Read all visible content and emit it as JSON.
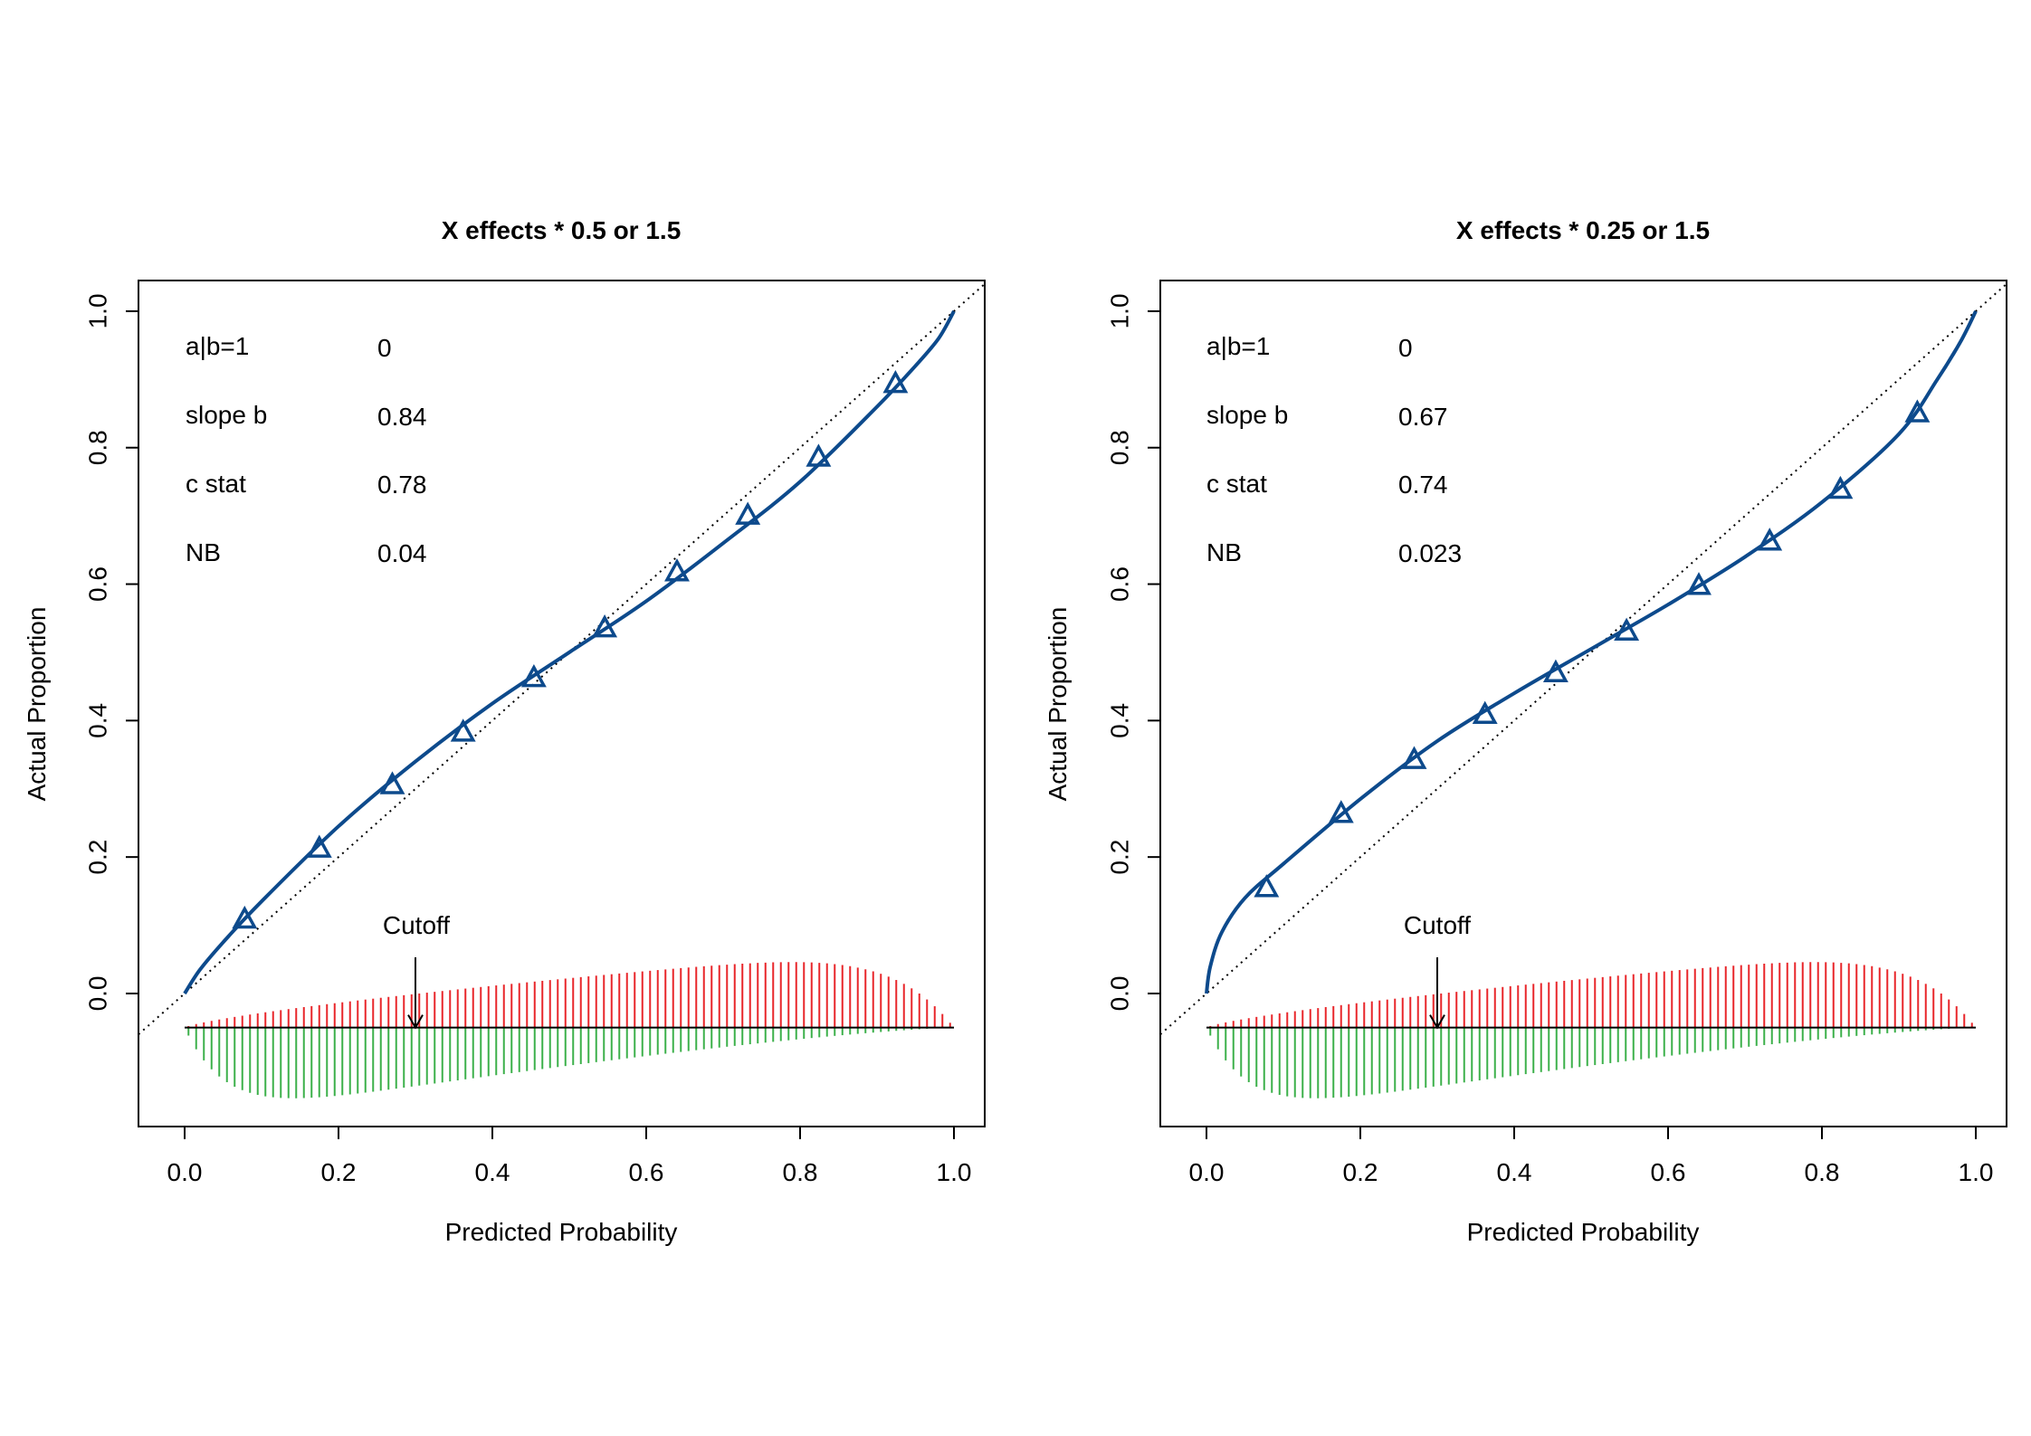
{
  "colors": {
    "calibration": "#0D4A8C",
    "positive_spikes": "#E8262A",
    "negative_spikes": "#3CB04A",
    "diagonal": "#000000",
    "frame": "#000000"
  },
  "chart_data": [
    {
      "type": "line",
      "title": "X effects * 0.5 or 1.5",
      "xlabel": "Predicted Probability",
      "ylabel": "Actual Proportion",
      "xlim": [
        -0.06,
        1.04
      ],
      "ylim": [
        -0.195,
        1.045
      ],
      "x_ticks": [
        "0.0",
        "0.2",
        "0.4",
        "0.6",
        "0.8",
        "1.0"
      ],
      "y_ticks": [
        "0.0",
        "0.2",
        "0.4",
        "0.6",
        "0.8",
        "1.0"
      ],
      "reference_line": "y = x (dotted)",
      "stats": [
        {
          "label": "a|b=1",
          "value": "0"
        },
        {
          "label": "slope b",
          "value": "0.84"
        },
        {
          "label": "c stat",
          "value": "0.78"
        },
        {
          "label": "NB",
          "value": "0.04"
        }
      ],
      "curve": {
        "x": [
          0.0,
          0.02,
          0.05,
          0.1,
          0.2,
          0.3,
          0.4,
          0.5,
          0.6,
          0.7,
          0.8,
          0.9,
          0.95,
          0.98,
          1.0
        ],
        "y": [
          0.0,
          0.035,
          0.075,
          0.135,
          0.245,
          0.34,
          0.425,
          0.5,
          0.575,
          0.66,
          0.75,
          0.86,
          0.92,
          0.96,
          1.0
        ]
      },
      "points": {
        "marker": "triangle",
        "x": [
          0.078,
          0.175,
          0.27,
          0.362,
          0.454,
          0.546,
          0.64,
          0.732,
          0.824,
          0.924
        ],
        "y": [
          0.108,
          0.212,
          0.305,
          0.382,
          0.462,
          0.535,
          0.617,
          0.7,
          0.785,
          0.893
        ]
      },
      "cutoff": {
        "label": "Cutoff",
        "x": 0.3
      },
      "distribution": {
        "baseline_y": -0.05,
        "x_range": [
          0.0,
          1.0
        ],
        "bars": 100,
        "positive_max_height": 0.095,
        "negative_max_depth": 0.1
      }
    },
    {
      "type": "line",
      "title": "X effects * 0.25 or 1.5",
      "xlabel": "Predicted Probability",
      "ylabel": "Actual Proportion",
      "xlim": [
        -0.06,
        1.04
      ],
      "ylim": [
        -0.195,
        1.045
      ],
      "x_ticks": [
        "0.0",
        "0.2",
        "0.4",
        "0.6",
        "0.8",
        "1.0"
      ],
      "y_ticks": [
        "0.0",
        "0.2",
        "0.4",
        "0.6",
        "0.8",
        "1.0"
      ],
      "reference_line": "y = x (dotted)",
      "stats": [
        {
          "label": "a|b=1",
          "value": "0"
        },
        {
          "label": "slope b",
          "value": "0.67"
        },
        {
          "label": "c stat",
          "value": "0.74"
        },
        {
          "label": "NB",
          "value": "0.023"
        }
      ],
      "curve": {
        "x": [
          0.0,
          0.005,
          0.02,
          0.05,
          0.1,
          0.2,
          0.3,
          0.4,
          0.5,
          0.6,
          0.7,
          0.8,
          0.9,
          0.95,
          0.98,
          1.0
        ],
        "y": [
          0.0,
          0.04,
          0.09,
          0.14,
          0.19,
          0.285,
          0.37,
          0.44,
          0.505,
          0.57,
          0.64,
          0.72,
          0.82,
          0.9,
          0.955,
          1.0
        ]
      },
      "points": {
        "marker": "triangle",
        "x": [
          0.078,
          0.175,
          0.27,
          0.362,
          0.454,
          0.546,
          0.64,
          0.732,
          0.824,
          0.924
        ],
        "y": [
          0.154,
          0.263,
          0.342,
          0.408,
          0.469,
          0.53,
          0.597,
          0.662,
          0.738,
          0.85
        ]
      },
      "cutoff": {
        "label": "Cutoff",
        "x": 0.3
      },
      "distribution": {
        "baseline_y": -0.05,
        "x_range": [
          0.0,
          1.0
        ],
        "bars": 100,
        "positive_max_height": 0.095,
        "negative_max_depth": 0.1
      }
    }
  ]
}
